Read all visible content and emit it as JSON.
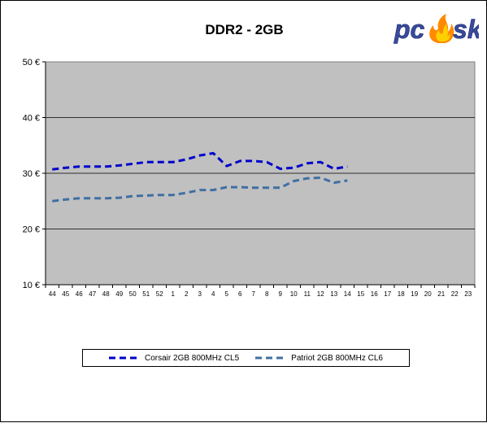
{
  "chart_data": {
    "type": "line",
    "title": "DDR2 - 2GB",
    "xlabel": "",
    "ylabel": "",
    "ylim": [
      10,
      50
    ],
    "yticks": [
      "10 €",
      "20 €",
      "30 €",
      "40 €",
      "50 €"
    ],
    "categories": [
      "44",
      "45",
      "46",
      "47",
      "48",
      "49",
      "50",
      "51",
      "52",
      "1",
      "2",
      "3",
      "4",
      "5",
      "6",
      "7",
      "8",
      "9",
      "10",
      "11",
      "12",
      "13",
      "14",
      "15",
      "16",
      "17",
      "18",
      "19",
      "20",
      "21",
      "22",
      "23"
    ],
    "series": [
      {
        "name": "Corsair 2GB 800MHz CL5",
        "color": "#0000cc",
        "values": [
          30.7,
          31,
          31.2,
          31.2,
          31.2,
          31.4,
          31.7,
          32,
          32,
          32,
          32.5,
          33.2,
          33.6,
          31.3,
          32.2,
          32.2,
          32,
          30.8,
          31,
          31.8,
          32,
          30.8,
          31.2,
          null,
          null,
          null,
          null,
          null,
          null,
          null,
          null,
          null
        ]
      },
      {
        "name": "Patriot 2GB 800MHz CL6",
        "color": "#3f6fa3",
        "values": [
          25,
          25.3,
          25.5,
          25.5,
          25.5,
          25.6,
          25.9,
          26,
          26.1,
          26.1,
          26.5,
          27,
          27,
          27.5,
          27.5,
          27.4,
          27.4,
          27.4,
          28.6,
          29.1,
          29.2,
          28.3,
          28.7,
          null,
          null,
          null,
          null,
          null,
          null,
          null,
          null,
          null
        ]
      }
    ],
    "grid": true,
    "legend_position": "bottom",
    "plot_background": "#c0c0c0"
  },
  "logo": {
    "text": "pcask",
    "icon": "flame-icon"
  }
}
